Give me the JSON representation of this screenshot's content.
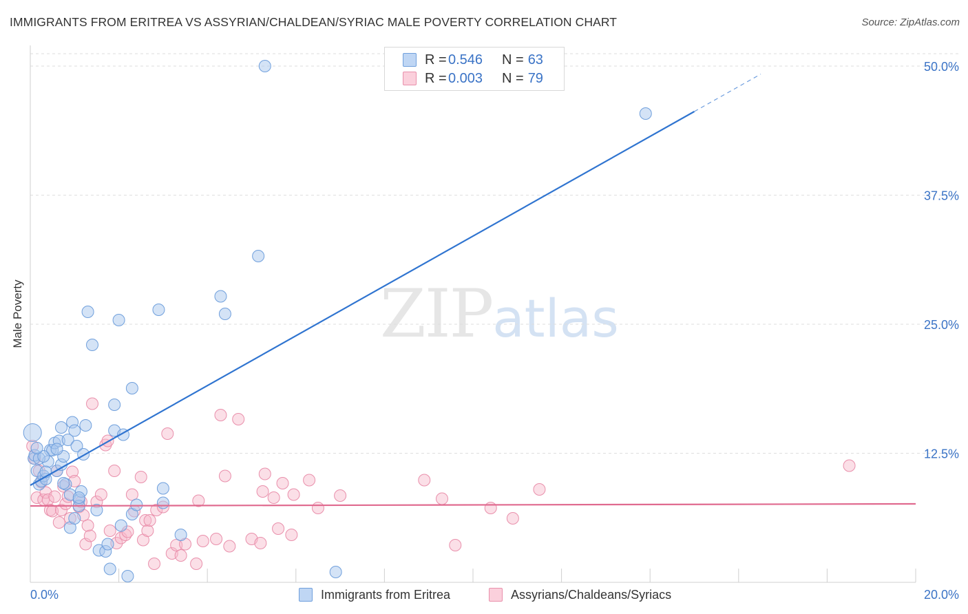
{
  "title": "IMMIGRANTS FROM ERITREA VS ASSYRIAN/CHALDEAN/SYRIAC MALE POVERTY CORRELATION CHART",
  "source": "Source: ZipAtlas.com",
  "watermark": {
    "zip": "ZIP",
    "atlas": "atlas"
  },
  "legend": {
    "rows": [
      {
        "r_label": "R =",
        "r_value": "0.546",
        "n_label": "N =",
        "n_value": "63"
      },
      {
        "r_label": "R =",
        "r_value": "0.003",
        "n_label": "N =",
        "n_value": "79"
      }
    ]
  },
  "colors": {
    "blue_fill": "#a9c7ee",
    "blue_stroke": "#6f9fdc",
    "blue_line": "#2f74d0",
    "pink_fill": "#f6b7c9",
    "pink_stroke": "#e98fab",
    "pink_line": "#e06a8f",
    "tick_label": "#3a73c6",
    "grid": "#dedede"
  },
  "chart_data": {
    "type": "scatter",
    "title": "IMMIGRANTS FROM ERITREA VS ASSYRIAN/CHALDEAN/SYRIAC MALE POVERTY CORRELATION CHART",
    "xlabel": "",
    "ylabel": "Male Poverty",
    "xlim": [
      0,
      20
    ],
    "ylim": [
      0,
      50
    ],
    "x_tick_labels": [
      "0.0%",
      "20.0%"
    ],
    "y_ticks": [
      12.5,
      25.0,
      37.5,
      50.0
    ],
    "y_tick_labels": [
      "12.5%",
      "25.0%",
      "37.5%",
      "50.0%"
    ],
    "grid": true,
    "legend_position": "top-center",
    "series": [
      {
        "name": "Immigrants from Eritrea",
        "color": "#a9c7ee",
        "trend": {
          "x0": 0.0,
          "y0": 9.4,
          "x1": 15.0,
          "y1": 45.6,
          "dashed_to_x": 16.5
        },
        "points": [
          [
            0.05,
            14.5
          ],
          [
            0.08,
            12.0
          ],
          [
            0.1,
            12.3
          ],
          [
            0.15,
            10.8
          ],
          [
            0.2,
            9.5
          ],
          [
            0.25,
            9.8
          ],
          [
            0.3,
            10.3
          ],
          [
            0.35,
            10.0
          ],
          [
            0.4,
            11.7
          ],
          [
            0.45,
            12.8
          ],
          [
            0.5,
            12.8
          ],
          [
            0.55,
            13.5
          ],
          [
            0.6,
            10.8
          ],
          [
            0.65,
            13.7
          ],
          [
            0.7,
            11.4
          ],
          [
            0.7,
            15.0
          ],
          [
            0.75,
            12.2
          ],
          [
            0.8,
            9.5
          ],
          [
            0.85,
            13.8
          ],
          [
            0.9,
            8.5
          ],
          [
            0.9,
            5.3
          ],
          [
            0.95,
            15.5
          ],
          [
            1.0,
            14.7
          ],
          [
            1.05,
            13.2
          ],
          [
            1.1,
            8.0
          ],
          [
            1.1,
            7.4
          ],
          [
            1.15,
            8.8
          ],
          [
            1.2,
            12.4
          ],
          [
            1.25,
            15.2
          ],
          [
            1.3,
            26.2
          ],
          [
            1.4,
            23.0
          ],
          [
            1.5,
            7.0
          ],
          [
            1.55,
            3.1
          ],
          [
            1.7,
            3.0
          ],
          [
            1.75,
            3.7
          ],
          [
            1.8,
            1.3
          ],
          [
            1.9,
            17.2
          ],
          [
            1.9,
            14.7
          ],
          [
            2.0,
            25.4
          ],
          [
            2.1,
            14.3
          ],
          [
            2.2,
            0.6
          ],
          [
            2.3,
            6.6
          ],
          [
            2.3,
            18.8
          ],
          [
            2.4,
            7.5
          ],
          [
            2.9,
            26.4
          ],
          [
            3.0,
            7.7
          ],
          [
            3.0,
            9.1
          ],
          [
            3.4,
            4.6
          ],
          [
            4.3,
            27.7
          ],
          [
            4.4,
            26.0
          ],
          [
            5.15,
            31.6
          ],
          [
            5.3,
            50.0
          ],
          [
            6.9,
            1.0
          ],
          [
            13.9,
            45.4
          ],
          [
            0.2,
            12.0
          ],
          [
            0.3,
            12.2
          ],
          [
            0.6,
            12.9
          ],
          [
            0.75,
            9.6
          ],
          [
            1.1,
            8.2
          ],
          [
            0.15,
            13.0
          ],
          [
            0.35,
            10.7
          ],
          [
            1.0,
            6.2
          ],
          [
            2.05,
            5.5
          ]
        ]
      },
      {
        "name": "Assyrians/Chaldeans/Syriacs",
        "color": "#f6b7c9",
        "trend": {
          "x0": 0.0,
          "y0": 7.4,
          "x1": 20.0,
          "y1": 7.6
        },
        "points": [
          [
            0.05,
            13.2
          ],
          [
            0.1,
            12.0
          ],
          [
            0.15,
            8.2
          ],
          [
            0.2,
            10.8
          ],
          [
            0.25,
            9.7
          ],
          [
            0.3,
            8.0
          ],
          [
            0.35,
            8.7
          ],
          [
            0.4,
            8.0
          ],
          [
            0.45,
            7.0
          ],
          [
            0.5,
            6.9
          ],
          [
            0.55,
            8.3
          ],
          [
            0.6,
            10.8
          ],
          [
            0.65,
            5.8
          ],
          [
            0.7,
            7.0
          ],
          [
            0.75,
            9.3
          ],
          [
            0.8,
            7.6
          ],
          [
            0.85,
            8.3
          ],
          [
            0.9,
            6.2
          ],
          [
            0.95,
            10.7
          ],
          [
            1.0,
            9.8
          ],
          [
            1.1,
            7.3
          ],
          [
            1.15,
            7.8
          ],
          [
            1.2,
            6.5
          ],
          [
            1.25,
            3.7
          ],
          [
            1.3,
            5.5
          ],
          [
            1.35,
            4.5
          ],
          [
            1.4,
            17.3
          ],
          [
            1.5,
            7.8
          ],
          [
            1.6,
            8.5
          ],
          [
            1.7,
            13.3
          ],
          [
            1.75,
            13.7
          ],
          [
            1.8,
            5.0
          ],
          [
            1.9,
            10.8
          ],
          [
            1.95,
            3.8
          ],
          [
            2.05,
            4.3
          ],
          [
            2.15,
            4.6
          ],
          [
            2.2,
            4.9
          ],
          [
            2.3,
            8.5
          ],
          [
            2.35,
            6.9
          ],
          [
            2.5,
            10.2
          ],
          [
            2.55,
            4.1
          ],
          [
            2.6,
            6.0
          ],
          [
            2.65,
            5.0
          ],
          [
            2.7,
            6.0
          ],
          [
            2.8,
            1.8
          ],
          [
            2.85,
            7.0
          ],
          [
            3.0,
            7.3
          ],
          [
            3.1,
            14.4
          ],
          [
            3.2,
            2.8
          ],
          [
            3.3,
            3.6
          ],
          [
            3.4,
            2.6
          ],
          [
            3.5,
            3.7
          ],
          [
            3.75,
            1.8
          ],
          [
            3.8,
            7.9
          ],
          [
            3.9,
            4.0
          ],
          [
            4.2,
            4.2
          ],
          [
            4.3,
            16.2
          ],
          [
            4.4,
            10.3
          ],
          [
            4.5,
            3.5
          ],
          [
            4.7,
            15.8
          ],
          [
            5.0,
            4.2
          ],
          [
            5.2,
            3.8
          ],
          [
            5.25,
            8.8
          ],
          [
            5.3,
            10.5
          ],
          [
            5.5,
            8.2
          ],
          [
            5.6,
            5.2
          ],
          [
            5.7,
            9.6
          ],
          [
            5.9,
            4.6
          ],
          [
            5.95,
            8.5
          ],
          [
            6.3,
            9.9
          ],
          [
            6.5,
            7.2
          ],
          [
            7.0,
            8.4
          ],
          [
            8.9,
            9.9
          ],
          [
            9.3,
            8.1
          ],
          [
            9.6,
            3.6
          ],
          [
            10.4,
            7.2
          ],
          [
            10.9,
            6.2
          ],
          [
            11.5,
            9.0
          ],
          [
            18.5,
            11.3
          ]
        ]
      }
    ]
  },
  "bottom_legend": [
    {
      "label": "Immigrants from Eritrea"
    },
    {
      "label": "Assyrians/Chaldeans/Syriacs"
    }
  ]
}
